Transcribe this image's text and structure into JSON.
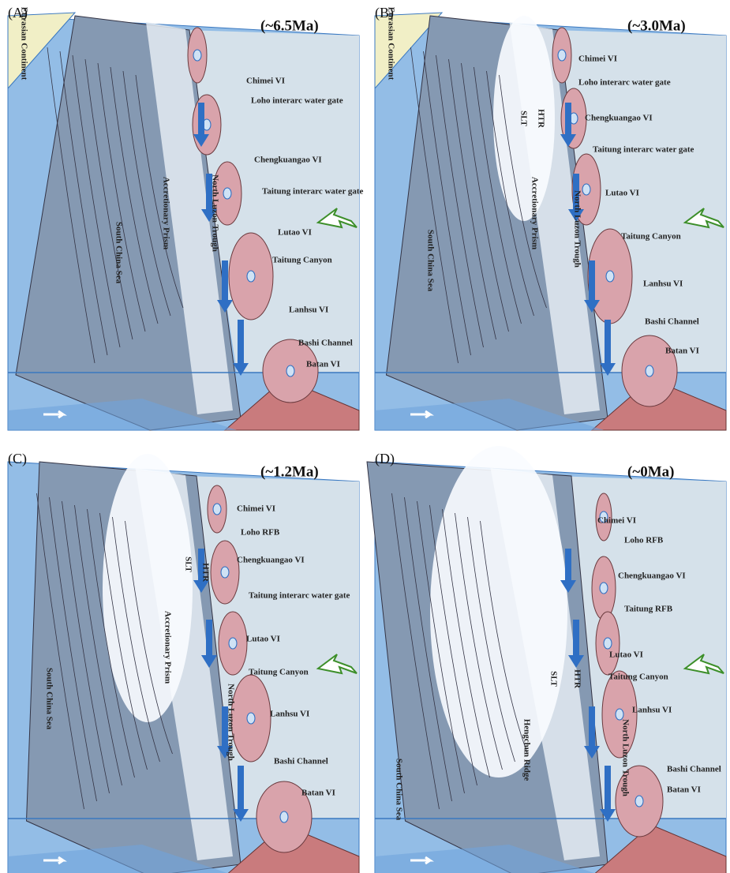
{
  "panels": [
    {
      "label": "(A)",
      "age": "(~6.5Ma)",
      "labels": [
        "Eurasian Continent",
        "South China Sea",
        "Accretionary Prism",
        "North Luzon Trough",
        "Chimei VI",
        "Loho interarc water gate",
        "Chengkuangao VI",
        "Taitung interarc water gate",
        "Lutao VI",
        "Taitung Canyon",
        "Lanhsu VI",
        "Bashi Channel",
        "Batan VI"
      ]
    },
    {
      "label": "(B)",
      "age": "(~3.0Ma)",
      "labels": [
        "Eurasian Continent",
        "South China Sea",
        "Accretionary Prism",
        "North Luzon Trough",
        "SLT",
        "HTR",
        "Chimei VI",
        "Loho interarc water gate",
        "Chengkuangao VI",
        "Taitung interarc water gate",
        "Lutao VI",
        "Taitung Canyon",
        "Lanhsu VI",
        "Bashi Channel",
        "Batan VI"
      ]
    },
    {
      "label": "(C)",
      "age": "(~1.2Ma)",
      "labels": [
        "South China Sea",
        "Accretionary Prism",
        "North Luzon Trough",
        "SLT",
        "HTR",
        "Chimei VI",
        "Loho RFB",
        "Chengkuangao VI",
        "Taitung interarc water gate",
        "Lutao VI",
        "Taitung Canyon",
        "Lanhsu VI",
        "Bashi Channel",
        "Batan VI"
      ]
    },
    {
      "label": "(D)",
      "age": "(~0Ma)",
      "labels": [
        "South China Sea",
        "Hengchun Ridge",
        "North Luzon Trough",
        "SLT",
        "HTR",
        "Chimei VI",
        "Loho RFB",
        "Chengkuangao VI",
        "Taitung RFB",
        "Lutao VI",
        "Taitung Canyon",
        "Lanhsu VI",
        "Bashi Channel",
        "Batan VI"
      ]
    }
  ]
}
